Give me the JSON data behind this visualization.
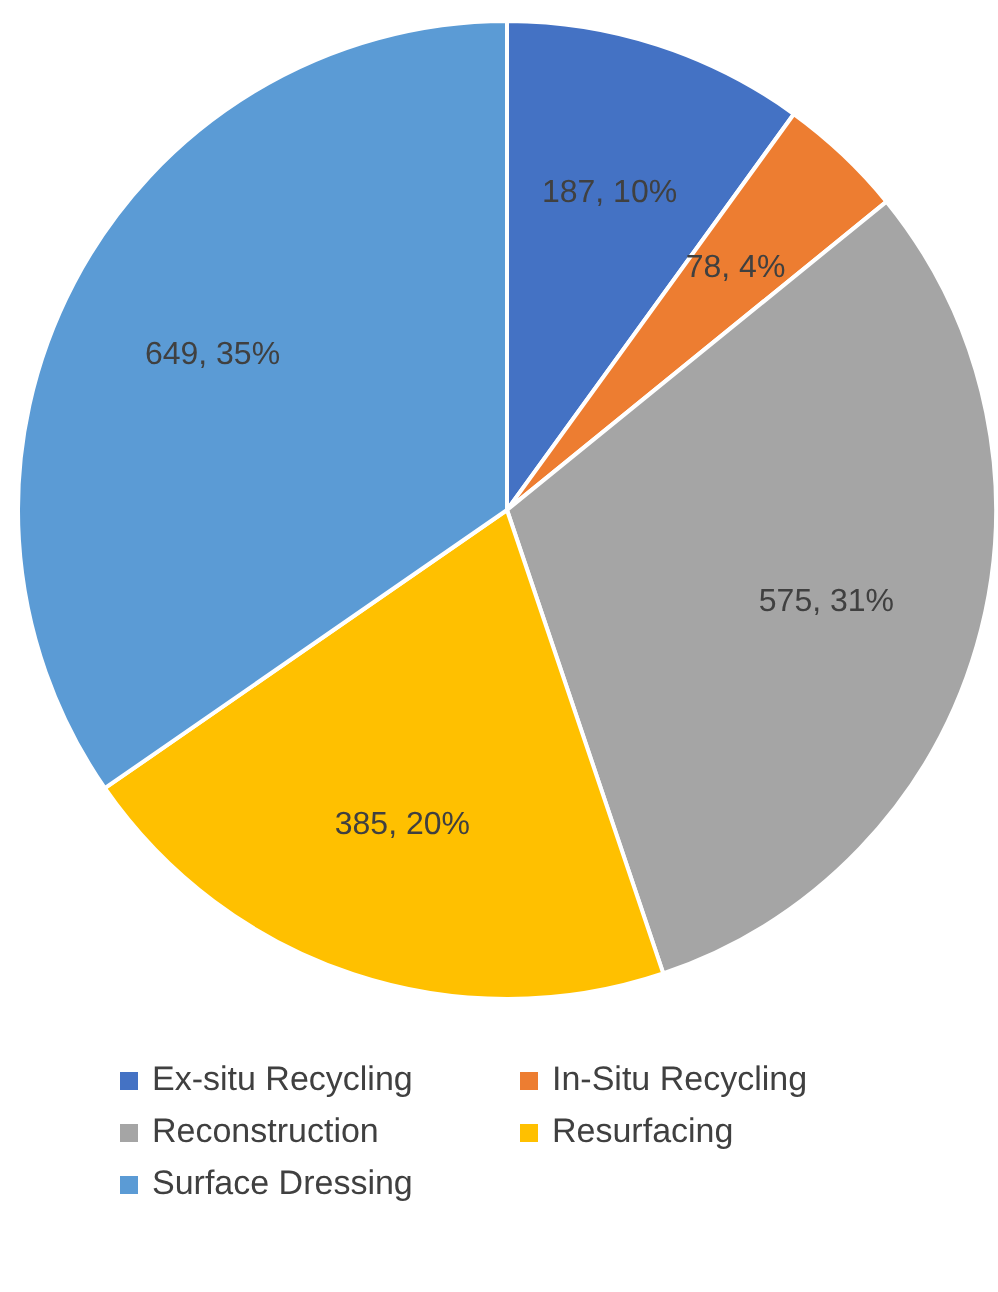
{
  "chart_data": {
    "type": "pie",
    "categories": [
      "Ex-situ Recycling",
      "In-Situ Recycling",
      "Reconstruction",
      "Resurfacing",
      "Surface Dressing"
    ],
    "values": [
      187,
      78,
      575,
      385,
      649
    ],
    "colors": [
      "#4472c4",
      "#ed7d31",
      "#a5a5a5",
      "#ffc000",
      "#5b9bd5"
    ],
    "value_labels": [
      "187, 10%",
      "78, 4%",
      "575, 31%",
      "385, 20%",
      "649, 35%"
    ],
    "legend": "bottom"
  }
}
